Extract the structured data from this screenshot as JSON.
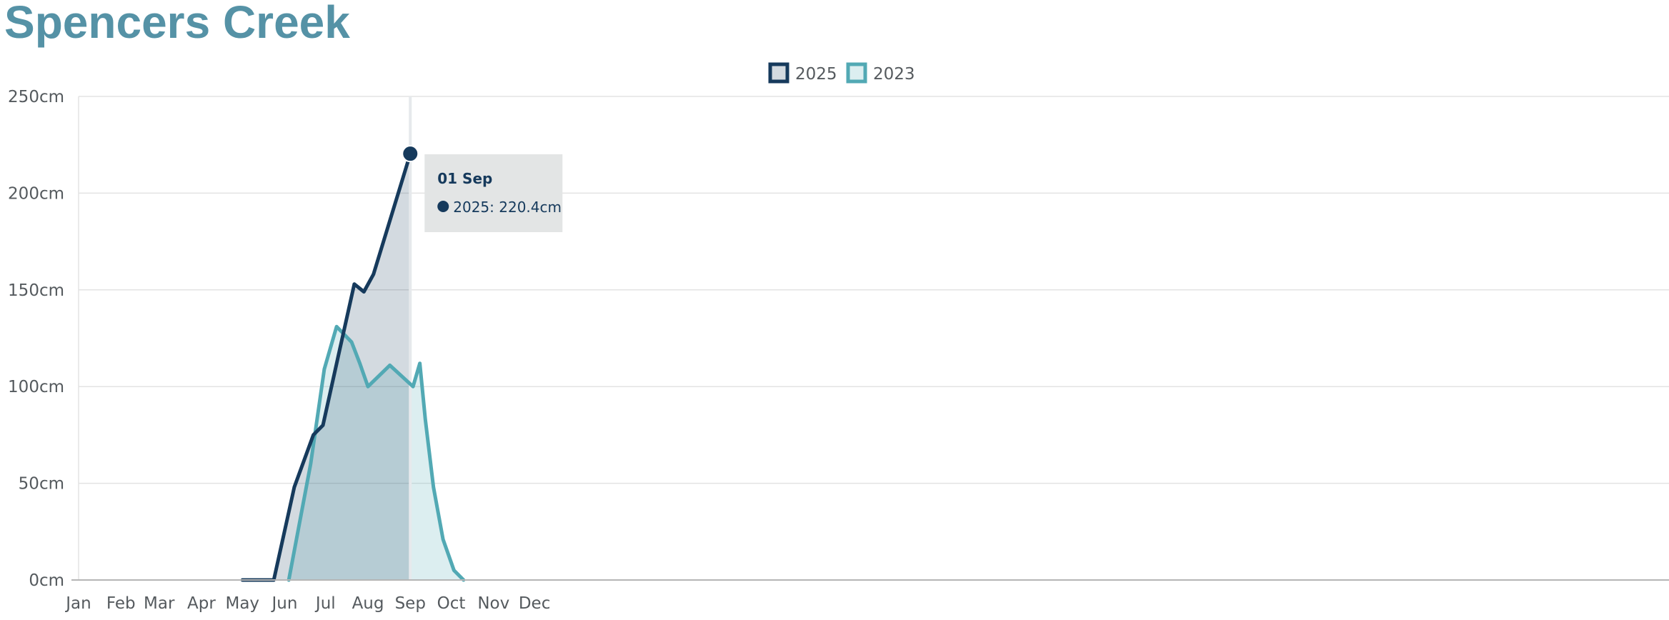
{
  "page_title": "Spencers Creek",
  "colors": {
    "title": "#5592a6",
    "series_2025": "#163a5c",
    "series_2023": "#52a9b4"
  },
  "chart_data": {
    "type": "area",
    "title": "Spencers Creek",
    "xlabel": "",
    "ylabel": "",
    "x_ticks": [
      "Jan",
      "Feb",
      "Mar",
      "Apr",
      "May",
      "Jun",
      "Jul",
      "Aug",
      "Sep",
      "Oct",
      "Nov",
      "Dec"
    ],
    "y_ticks": [
      "0cm",
      "50cm",
      "100cm",
      "150cm",
      "200cm",
      "250cm"
    ],
    "ylim": [
      0,
      250
    ],
    "xlim": [
      "01 Jan",
      "31 Dec"
    ],
    "grid": true,
    "legend_position": "top-center",
    "series": [
      {
        "name": "2025",
        "color": "#163a5c",
        "points": [
          {
            "date": "01 May",
            "value": 0
          },
          {
            "date": "08 May",
            "value": 0
          },
          {
            "date": "16 May",
            "value": 0
          },
          {
            "date": "24 May",
            "value": 0
          },
          {
            "date": "08 Jun",
            "value": 48
          },
          {
            "date": "22 Jun",
            "value": 75
          },
          {
            "date": "29 Jun",
            "value": 80
          },
          {
            "date": "10 Jul",
            "value": 115
          },
          {
            "date": "22 Jul",
            "value": 153
          },
          {
            "date": "29 Jul",
            "value": 149
          },
          {
            "date": "05 Aug",
            "value": 158
          },
          {
            "date": "01 Sep",
            "value": 220.4
          }
        ]
      },
      {
        "name": "2023",
        "color": "#52a9b4",
        "points": [
          {
            "date": "04 Jun",
            "value": 0
          },
          {
            "date": "20 Jun",
            "value": 60
          },
          {
            "date": "30 Jun",
            "value": 109
          },
          {
            "date": "09 Jul",
            "value": 131
          },
          {
            "date": "20 Jul",
            "value": 123
          },
          {
            "date": "26 Jul",
            "value": 112
          },
          {
            "date": "01 Aug",
            "value": 100
          },
          {
            "date": "17 Aug",
            "value": 111
          },
          {
            "date": "03 Sep",
            "value": 100
          },
          {
            "date": "08 Sep",
            "value": 112
          },
          {
            "date": "12 Sep",
            "value": 83
          },
          {
            "date": "18 Sep",
            "value": 48
          },
          {
            "date": "25 Sep",
            "value": 21
          },
          {
            "date": "03 Oct",
            "value": 5
          },
          {
            "date": "10 Oct",
            "value": 0
          }
        ]
      }
    ],
    "tooltip": {
      "title": "01 Sep",
      "series": "2025",
      "line": "2025: 220.4cm",
      "date": "01 Sep",
      "value": 220.4
    }
  }
}
